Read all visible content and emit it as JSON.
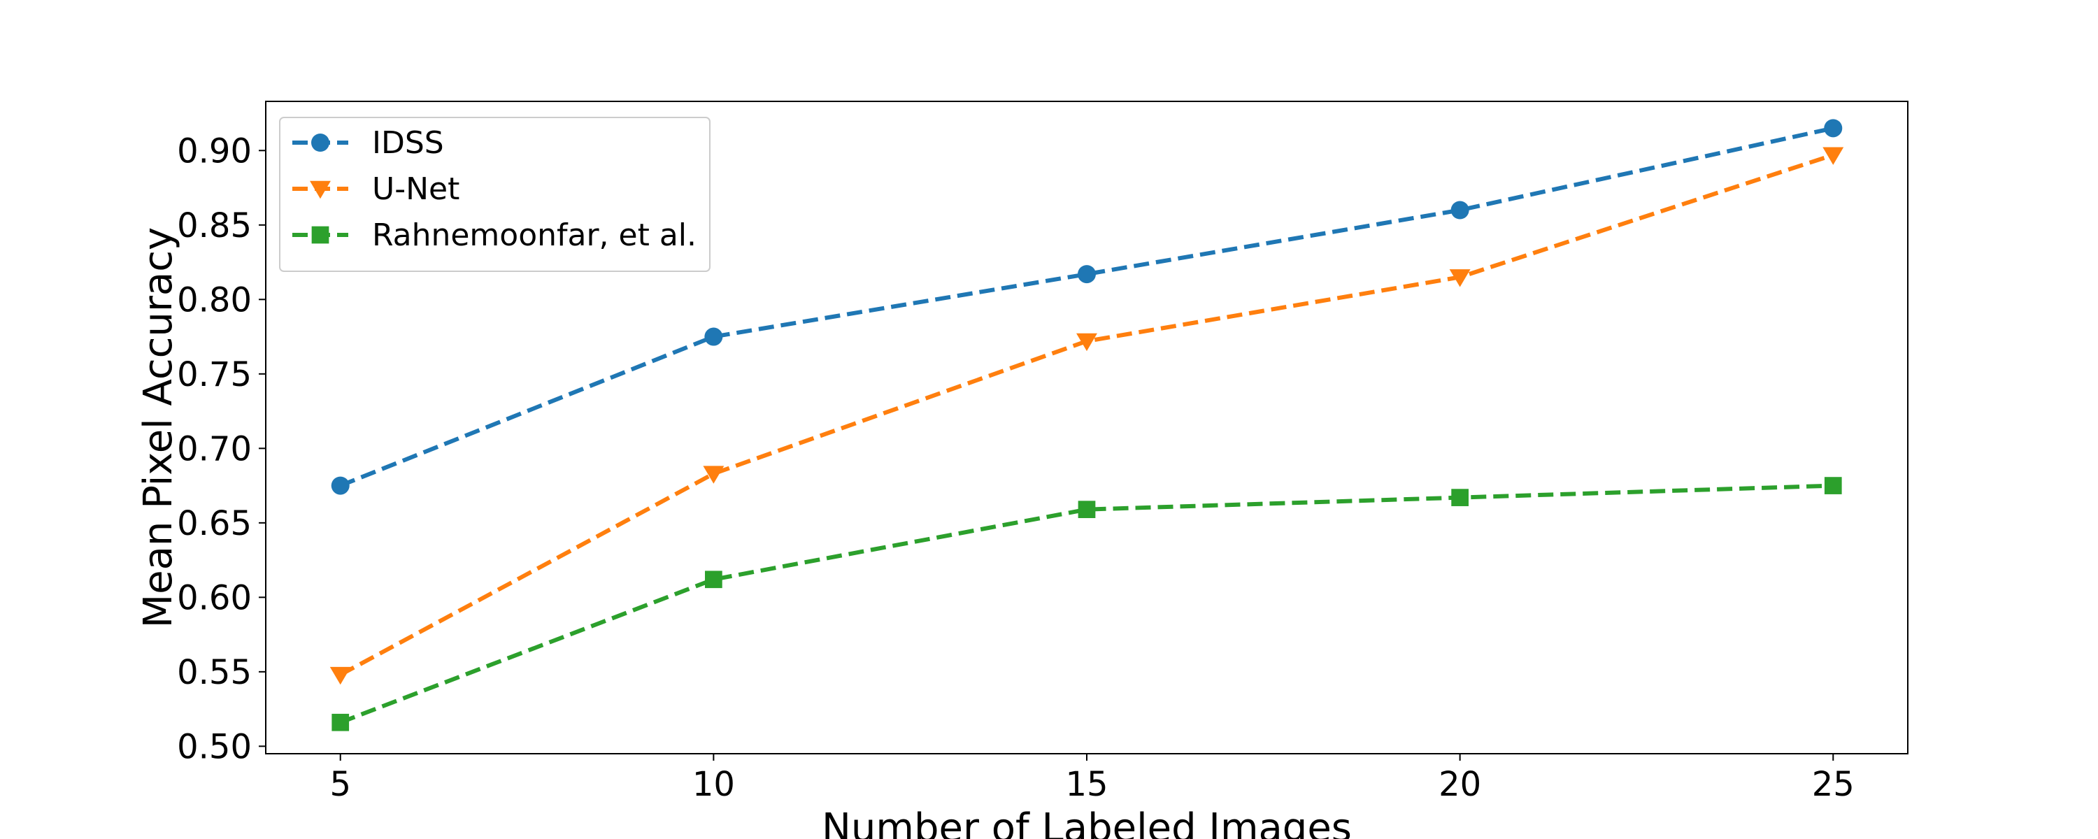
{
  "chart_data": {
    "type": "line",
    "title": "",
    "xlabel": "Number of Labeled Images",
    "ylabel": "Mean Pixel Accuracy",
    "x": [
      5,
      10,
      15,
      20,
      25
    ],
    "xlim": [
      4,
      26
    ],
    "ylim": [
      0.495,
      0.933
    ],
    "xticks": [
      5,
      10,
      15,
      20,
      25
    ],
    "yticks": [
      0.5,
      0.55,
      0.6,
      0.65,
      0.7,
      0.75,
      0.8,
      0.85,
      0.9
    ],
    "grid": false,
    "legend_position": "top-left",
    "series": [
      {
        "name": "IDSS",
        "marker": "circle",
        "line_style": "dashed",
        "color": "#1f77b4",
        "values": [
          0.675,
          0.775,
          0.817,
          0.86,
          0.915
        ]
      },
      {
        "name": "U-Net",
        "marker": "triangle-down",
        "line_style": "dashed",
        "color": "#ff7f0e",
        "values": [
          0.548,
          0.683,
          0.772,
          0.815,
          0.897
        ]
      },
      {
        "name": "Rahnemoonfar, et al.",
        "marker": "square",
        "line_style": "dashed",
        "color": "#2ca02c",
        "values": [
          0.516,
          0.612,
          0.659,
          0.667,
          0.675
        ]
      }
    ]
  }
}
